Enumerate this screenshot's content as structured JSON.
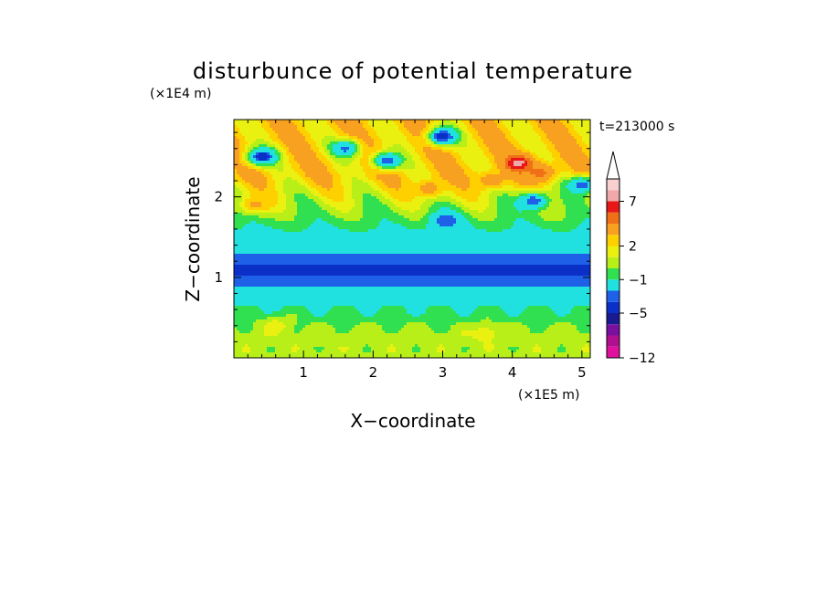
{
  "chart_data": {
    "type": "heatmap",
    "title": "disturbunce of potential temperature",
    "xlabel": "X−coordinate",
    "ylabel": "Z−coordinate",
    "x_scale_label": "(×1E5 m)",
    "y_scale_label": "(×1E4 m)",
    "time_label": "t=213000 s",
    "xlim": [
      0,
      5.12
    ],
    "ylim": [
      0,
      2.96
    ],
    "x_ticks": [
      {
        "value": 1,
        "label": "1"
      },
      {
        "value": 2,
        "label": "2"
      },
      {
        "value": 3,
        "label": "3"
      },
      {
        "value": 4,
        "label": "4"
      },
      {
        "value": 5,
        "label": "5"
      }
    ],
    "y_ticks": [
      {
        "value": 1,
        "label": "1"
      },
      {
        "value": 2,
        "label": "2"
      }
    ],
    "colorbar": {
      "levels": [
        -12,
        -11,
        -9,
        -7,
        -5,
        -4,
        -3,
        -1,
        0,
        1,
        2,
        3,
        5,
        6,
        7,
        8,
        9
      ],
      "colors": [
        "#e0109f",
        "#b01090",
        "#7a10a0",
        "#1a1a90",
        "#0a30c8",
        "#1e60e8",
        "#20e0e0",
        "#30e050",
        "#b8ef18",
        "#eaf010",
        "#ffd000",
        "#f8a020",
        "#f07018",
        "#e81818",
        "#f0a8a8",
        "#f8d0d0"
      ],
      "tick_labels": [
        {
          "value": 7,
          "label": "7"
        },
        {
          "value": 2,
          "label": "2"
        },
        {
          "value": -1,
          "label": "−1"
        },
        {
          "value": -5,
          "label": "−5"
        },
        {
          "value": -12,
          "label": "−12"
        }
      ],
      "extend": "max"
    },
    "field_summary": {
      "z_bands": [
        {
          "z_range": [
            0.0,
            0.6
          ],
          "approx_value": 0.5
        },
        {
          "z_range": [
            0.6,
            0.85
          ],
          "approx_value": -1.5
        },
        {
          "z_range": [
            0.85,
            1.3
          ],
          "approx_value": -4.5
        },
        {
          "z_range": [
            1.3,
            1.55
          ],
          "approx_value": -2.0
        },
        {
          "z_range": [
            1.55,
            2.96
          ],
          "approx_value": 2.5
        }
      ],
      "features": [
        {
          "x": 4.1,
          "z": 2.42,
          "value": 7.5
        },
        {
          "x": 4.4,
          "z": 2.3,
          "value": 5.5
        },
        {
          "x": 3.7,
          "z": 2.2,
          "value": 4.0
        },
        {
          "x": 2.8,
          "z": 2.1,
          "value": 4.0
        },
        {
          "x": 0.4,
          "z": 2.5,
          "value": -5.0
        },
        {
          "x": 3.0,
          "z": 2.75,
          "value": -5.0
        },
        {
          "x": 2.2,
          "z": 2.45,
          "value": -4.0
        },
        {
          "x": 3.05,
          "z": 1.7,
          "value": -4.0
        },
        {
          "x": 4.3,
          "z": 1.95,
          "value": -4.0
        },
        {
          "x": 5.0,
          "z": 2.15,
          "value": -4.0
        },
        {
          "x": 1.6,
          "z": 2.6,
          "value": -3.5
        },
        {
          "x": 0.3,
          "z": 1.9,
          "value": 3.5
        },
        {
          "x": 3.6,
          "z": 0.3,
          "value": 1.5
        },
        {
          "x": 0.6,
          "z": 0.4,
          "value": 1.5
        }
      ]
    }
  }
}
